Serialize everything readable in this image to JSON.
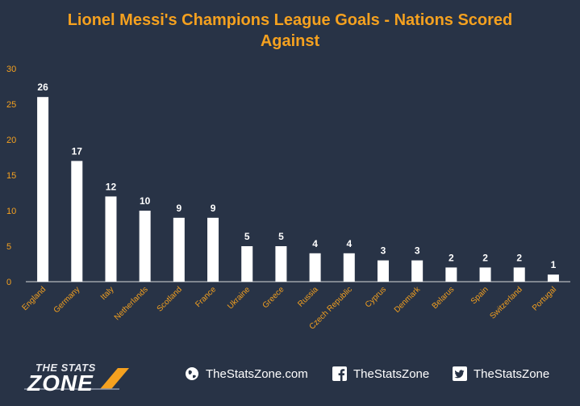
{
  "chart_data": {
    "type": "bar",
    "title": "Lionel Messi's Champions League Goals - Nations Scored Against",
    "categories": [
      "England",
      "Germany",
      "Italy",
      "Netherlands",
      "Scotland",
      "France",
      "Ukraine",
      "Greece",
      "Russia",
      "Czech Republic",
      "Cyprus",
      "Denmark",
      "Belarus",
      "Spain",
      "Switzerland",
      "Portugal"
    ],
    "values": [
      26,
      17,
      12,
      10,
      9,
      9,
      5,
      5,
      4,
      4,
      3,
      3,
      2,
      2,
      2,
      1
    ],
    "ylim": [
      0,
      30
    ],
    "yticks": [
      0,
      5,
      10,
      15,
      20,
      25,
      30
    ],
    "grid": false,
    "data_labels": true,
    "colors": {
      "bar": "#ffffff",
      "title": "#f5a11f",
      "tick": "#f5a11f",
      "background": "#283346",
      "label": "#ffffff"
    }
  },
  "footer": {
    "logo_top": "THE STATS",
    "logo_bottom": "ZONE",
    "website": "TheStatsZone.com",
    "facebook": "TheStatsZone",
    "twitter": "TheStatsZone",
    "icons": [
      "globe-icon",
      "facebook-icon",
      "twitter-icon"
    ]
  }
}
